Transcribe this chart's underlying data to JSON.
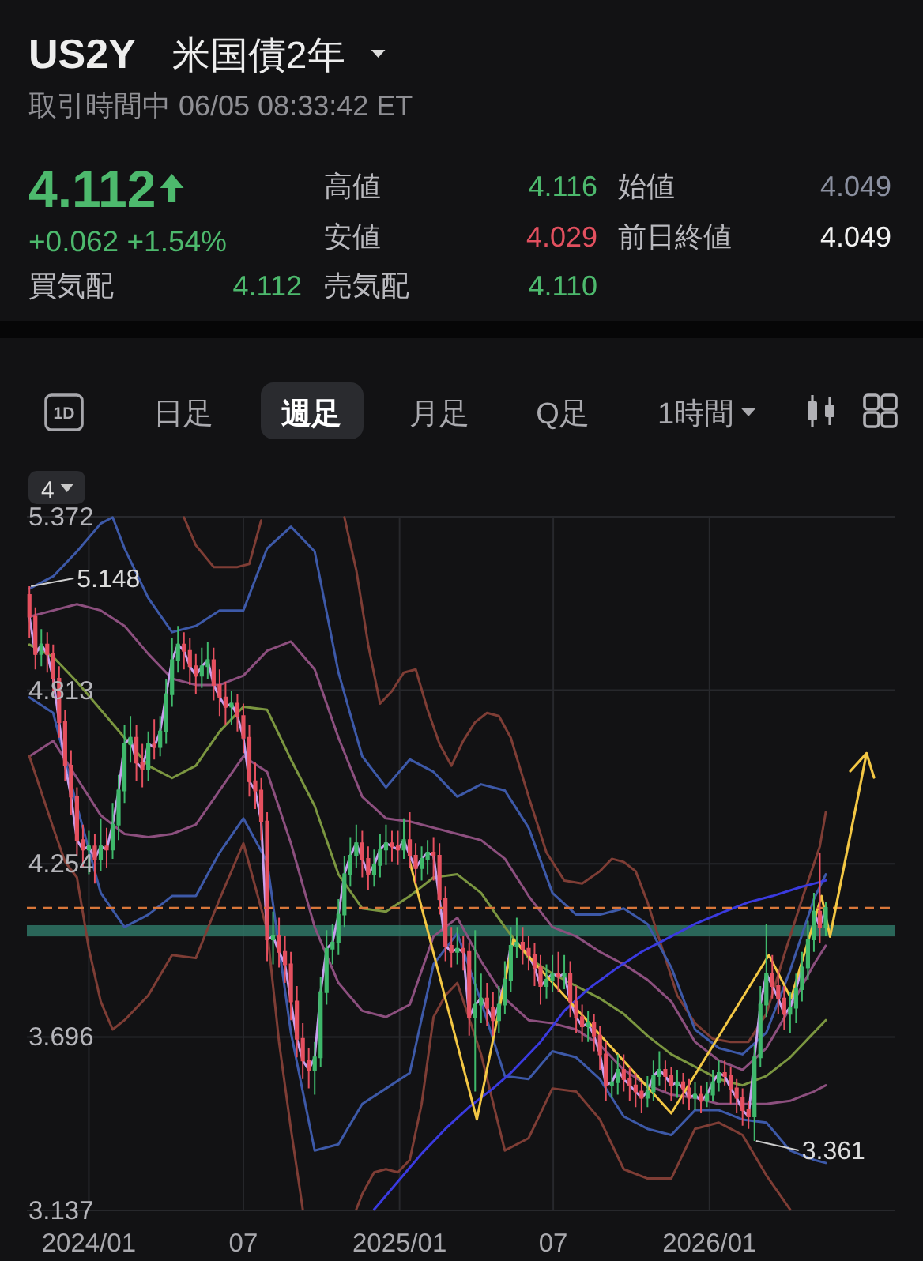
{
  "chart_data": {
    "type": "candlestick",
    "title": "US2Y",
    "subtitle": "米国債2年",
    "annotations": [
      "取引時間中 06/05 08:33:42 ET",
      "4.112",
      "+0.062 +1.54%",
      "高値",
      "4.116",
      "安値",
      "4.029",
      "始値",
      "4.049",
      "前日終値",
      "4.049",
      "買気配",
      "4.112",
      "売気配",
      "4.110",
      "1D",
      "日足",
      "週足",
      "月足",
      "Q足",
      "1時間",
      "4",
      {
        "text": "5.148",
        "x": "2023-10-23",
        "y": 5.148
      },
      {
        "text": "3.361",
        "x": "2026-02-23",
        "y": 3.361
      }
    ],
    "x": [
      "2023-10-23",
      "2023-10-30",
      "2023-11-06",
      "2023-11-13",
      "2023-11-20",
      "2023-11-27",
      "2023-12-04",
      "2023-12-11",
      "2023-12-18",
      "2023-12-25",
      "2024-01-01",
      "2024-01-08",
      "2024-01-15",
      "2024-01-22",
      "2024-01-29",
      "2024-02-05",
      "2024-02-12",
      "2024-02-19",
      "2024-02-26",
      "2024-03-04",
      "2024-03-11",
      "2024-03-18",
      "2024-03-25",
      "2024-04-01",
      "2024-04-08",
      "2024-04-15",
      "2024-04-22",
      "2024-04-29",
      "2024-05-06",
      "2024-05-13",
      "2024-05-20",
      "2024-05-27",
      "2024-06-03",
      "2024-06-10",
      "2024-06-17",
      "2024-06-24",
      "2024-07-01",
      "2024-07-08",
      "2024-07-15",
      "2024-07-22",
      "2024-07-29",
      "2024-08-05",
      "2024-08-12",
      "2024-08-19",
      "2024-08-26",
      "2024-09-02",
      "2024-09-09",
      "2024-09-16",
      "2024-09-23",
      "2024-09-30",
      "2024-10-07",
      "2024-10-14",
      "2024-10-21",
      "2024-10-28",
      "2024-11-04",
      "2024-11-11",
      "2024-11-18",
      "2024-11-25",
      "2024-12-02",
      "2024-12-09",
      "2024-12-16",
      "2024-12-23",
      "2024-12-30",
      "2025-01-06",
      "2025-01-13",
      "2025-01-20",
      "2025-01-27",
      "2025-02-03",
      "2025-02-10",
      "2025-02-17",
      "2025-02-24",
      "2025-03-03",
      "2025-03-10",
      "2025-03-17",
      "2025-03-24",
      "2025-03-31",
      "2025-04-07",
      "2025-04-14",
      "2025-04-21",
      "2025-04-28",
      "2025-05-05",
      "2025-05-12",
      "2025-05-19",
      "2025-05-26",
      "2025-06-02",
      "2025-06-09",
      "2025-06-16",
      "2025-06-23",
      "2025-06-30",
      "2025-07-07",
      "2025-07-14",
      "2025-07-21",
      "2025-07-28",
      "2025-08-04",
      "2025-08-11",
      "2025-08-18",
      "2025-08-25",
      "2025-09-01",
      "2025-09-08",
      "2025-09-15",
      "2025-09-22",
      "2025-09-29",
      "2025-10-06",
      "2025-10-13",
      "2025-10-20",
      "2025-10-27",
      "2025-11-03",
      "2025-11-10",
      "2025-11-17",
      "2025-11-24",
      "2025-12-01",
      "2025-12-08",
      "2025-12-15",
      "2025-12-22",
      "2025-12-29",
      "2026-01-05",
      "2026-01-12",
      "2026-01-19",
      "2026-01-26",
      "2026-02-02",
      "2026-02-09",
      "2026-02-16",
      "2026-02-23",
      "2026-03-02",
      "2026-03-09",
      "2026-03-16",
      "2026-03-23",
      "2026-03-30",
      "2026-04-06",
      "2026-04-13",
      "2026-04-20",
      "2026-04-27",
      "2026-05-04",
      "2026-05-11",
      "2026-05-18"
    ],
    "ohlc": [
      [
        5.12,
        5.148,
        4.98,
        5.05
      ],
      [
        5.05,
        5.08,
        4.88,
        4.93
      ],
      [
        4.93,
        5.01,
        4.89,
        4.96
      ],
      [
        4.96,
        5.0,
        4.87,
        4.93
      ],
      [
        4.93,
        4.96,
        4.8,
        4.85
      ],
      [
        4.85,
        4.89,
        4.66,
        4.71
      ],
      [
        4.71,
        4.75,
        4.52,
        4.57
      ],
      [
        4.57,
        4.62,
        4.41,
        4.47
      ],
      [
        4.47,
        4.5,
        4.28,
        4.33
      ],
      [
        4.33,
        4.38,
        4.24,
        4.3
      ],
      [
        4.3,
        4.36,
        4.22,
        4.31
      ],
      [
        4.31,
        4.35,
        4.19,
        4.27
      ],
      [
        4.27,
        4.4,
        4.23,
        4.31
      ],
      [
        4.31,
        4.37,
        4.24,
        4.3
      ],
      [
        4.3,
        4.45,
        4.27,
        4.38
      ],
      [
        4.38,
        4.54,
        4.33,
        4.49
      ],
      [
        4.49,
        4.7,
        4.45,
        4.64
      ],
      [
        4.64,
        4.73,
        4.58,
        4.66
      ],
      [
        4.66,
        4.7,
        4.52,
        4.58
      ],
      [
        4.58,
        4.64,
        4.5,
        4.56
      ],
      [
        4.56,
        4.68,
        4.52,
        4.64
      ],
      [
        4.64,
        4.72,
        4.59,
        4.63
      ],
      [
        4.63,
        4.73,
        4.6,
        4.68
      ],
      [
        4.68,
        4.85,
        4.64,
        4.8
      ],
      [
        4.8,
        4.98,
        4.76,
        4.91
      ],
      [
        4.91,
        5.02,
        4.87,
        4.96
      ],
      [
        4.96,
        5.0,
        4.88,
        4.94
      ],
      [
        4.94,
        4.98,
        4.83,
        4.89
      ],
      [
        4.89,
        4.93,
        4.8,
        4.86
      ],
      [
        4.86,
        4.95,
        4.82,
        4.89
      ],
      [
        4.89,
        4.97,
        4.85,
        4.91
      ],
      [
        4.91,
        4.95,
        4.78,
        4.83
      ],
      [
        4.83,
        4.88,
        4.73,
        4.79
      ],
      [
        4.79,
        4.84,
        4.7,
        4.76
      ],
      [
        4.76,
        4.81,
        4.7,
        4.77
      ],
      [
        4.77,
        4.8,
        4.68,
        4.73
      ],
      [
        4.73,
        4.77,
        4.61,
        4.66
      ],
      [
        4.66,
        4.7,
        4.47,
        4.52
      ],
      [
        4.52,
        4.58,
        4.43,
        4.49
      ],
      [
        4.49,
        4.53,
        4.33,
        4.39
      ],
      [
        4.39,
        4.42,
        3.94,
        4.01
      ],
      [
        4.01,
        4.1,
        3.93,
        4.02
      ],
      [
        4.02,
        4.08,
        3.92,
        3.97
      ],
      [
        3.97,
        4.02,
        3.87,
        3.93
      ],
      [
        3.93,
        3.97,
        3.75,
        3.81
      ],
      [
        3.81,
        3.86,
        3.63,
        3.69
      ],
      [
        3.69,
        3.74,
        3.56,
        3.62
      ],
      [
        3.62,
        3.66,
        3.53,
        3.59
      ],
      [
        3.59,
        3.68,
        3.51,
        3.63
      ],
      [
        3.63,
        3.89,
        3.6,
        3.84
      ],
      [
        3.84,
        4.04,
        3.8,
        3.98
      ],
      [
        3.98,
        4.06,
        3.93,
        4.0
      ],
      [
        4.0,
        4.14,
        3.96,
        4.09
      ],
      [
        4.09,
        4.28,
        4.05,
        4.22
      ],
      [
        4.22,
        4.34,
        4.18,
        4.28
      ],
      [
        4.28,
        4.38,
        4.24,
        4.32
      ],
      [
        4.32,
        4.36,
        4.21,
        4.27
      ],
      [
        4.27,
        4.31,
        4.17,
        4.22
      ],
      [
        4.22,
        4.3,
        4.18,
        4.25
      ],
      [
        4.25,
        4.35,
        4.21,
        4.3
      ],
      [
        4.3,
        4.38,
        4.25,
        4.32
      ],
      [
        4.32,
        4.36,
        4.26,
        4.31
      ],
      [
        4.31,
        4.36,
        4.25,
        4.3
      ],
      [
        4.3,
        4.4,
        4.27,
        4.33
      ],
      [
        4.33,
        4.42,
        4.24,
        4.28
      ],
      [
        4.28,
        4.32,
        4.19,
        4.24
      ],
      [
        4.24,
        4.31,
        4.2,
        4.27
      ],
      [
        4.27,
        4.33,
        4.22,
        4.29
      ],
      [
        4.29,
        4.34,
        4.2,
        4.28
      ],
      [
        4.28,
        4.32,
        4.09,
        4.14
      ],
      [
        4.14,
        4.18,
        3.94,
        3.99
      ],
      [
        3.99,
        4.05,
        3.92,
        3.97
      ],
      [
        3.97,
        4.05,
        3.93,
        3.98
      ],
      [
        3.98,
        4.02,
        3.91,
        3.97
      ],
      [
        3.97,
        4.0,
        3.7,
        3.76
      ],
      [
        3.76,
        4.04,
        3.52,
        3.8
      ],
      [
        3.8,
        3.9,
        3.74,
        3.82
      ],
      [
        3.82,
        3.87,
        3.73,
        3.79
      ],
      [
        3.79,
        3.84,
        3.7,
        3.75
      ],
      [
        3.75,
        3.86,
        3.71,
        3.8
      ],
      [
        3.8,
        3.94,
        3.77,
        3.88
      ],
      [
        3.88,
        4.05,
        3.84,
        3.99
      ],
      [
        3.99,
        4.08,
        3.95,
        4.0
      ],
      [
        4.0,
        4.05,
        3.93,
        3.98
      ],
      [
        3.98,
        4.02,
        3.91,
        3.96
      ],
      [
        3.96,
        4.0,
        3.86,
        3.92
      ],
      [
        3.92,
        3.96,
        3.8,
        3.86
      ],
      [
        3.86,
        3.93,
        3.82,
        3.88
      ],
      [
        3.88,
        3.96,
        3.84,
        3.9
      ],
      [
        3.9,
        3.97,
        3.84,
        3.89
      ],
      [
        3.89,
        3.96,
        3.85,
        3.9
      ],
      [
        3.9,
        3.94,
        3.76,
        3.81
      ],
      [
        3.81,
        3.86,
        3.71,
        3.76
      ],
      [
        3.76,
        3.8,
        3.68,
        3.73
      ],
      [
        3.73,
        3.78,
        3.68,
        3.74
      ],
      [
        3.74,
        3.77,
        3.65,
        3.7
      ],
      [
        3.7,
        3.73,
        3.59,
        3.64
      ],
      [
        3.64,
        3.68,
        3.49,
        3.54
      ],
      [
        3.54,
        3.62,
        3.5,
        3.55
      ],
      [
        3.55,
        3.64,
        3.51,
        3.59
      ],
      [
        3.59,
        3.64,
        3.52,
        3.56
      ],
      [
        3.56,
        3.6,
        3.49,
        3.54
      ],
      [
        3.54,
        3.58,
        3.47,
        3.52
      ],
      [
        3.52,
        3.55,
        3.45,
        3.5
      ],
      [
        3.5,
        3.57,
        3.47,
        3.52
      ],
      [
        3.52,
        3.62,
        3.49,
        3.57
      ],
      [
        3.57,
        3.65,
        3.54,
        3.59
      ],
      [
        3.59,
        3.62,
        3.52,
        3.57
      ],
      [
        3.57,
        3.6,
        3.49,
        3.54
      ],
      [
        3.54,
        3.59,
        3.5,
        3.55
      ],
      [
        3.55,
        3.58,
        3.48,
        3.53
      ],
      [
        3.53,
        3.56,
        3.46,
        3.5
      ],
      [
        3.5,
        3.55,
        3.46,
        3.51
      ],
      [
        3.51,
        3.54,
        3.45,
        3.49
      ],
      [
        3.49,
        3.55,
        3.47,
        3.51
      ],
      [
        3.51,
        3.59,
        3.49,
        3.55
      ],
      [
        3.55,
        3.62,
        3.52,
        3.58
      ],
      [
        3.58,
        3.62,
        3.54,
        3.57
      ],
      [
        3.57,
        3.6,
        3.48,
        3.53
      ],
      [
        3.53,
        3.56,
        3.45,
        3.5
      ],
      [
        3.5,
        3.53,
        3.41,
        3.46
      ],
      [
        3.46,
        3.49,
        3.4,
        3.44
      ],
      [
        3.44,
        3.67,
        3.361,
        3.63
      ],
      [
        3.63,
        3.86,
        3.6,
        3.8
      ],
      [
        3.8,
        4.06,
        3.76,
        3.9
      ],
      [
        3.9,
        3.96,
        3.82,
        3.86
      ],
      [
        3.86,
        3.91,
        3.77,
        3.82
      ],
      [
        3.82,
        3.86,
        3.72,
        3.77
      ],
      [
        3.77,
        3.84,
        3.71,
        3.79
      ],
      [
        3.79,
        3.9,
        3.74,
        3.85
      ],
      [
        3.85,
        3.97,
        3.81,
        3.92
      ],
      [
        3.92,
        4.07,
        3.88,
        4.01
      ],
      [
        4.01,
        4.16,
        3.97,
        4.1
      ],
      [
        4.1,
        4.29,
        4.0,
        4.05
      ],
      [
        4.05,
        4.13,
        4.02,
        4.112
      ]
    ],
    "colors": [
      "#e5505f",
      "#e5505f",
      "#3fb86b",
      "#e5505f",
      "#e5505f",
      "#e5505f",
      "#e5505f",
      "#e5505f",
      "#e5505f",
      "#e5505f",
      "#3fb86b",
      "#e5505f",
      "#3fb86b",
      "#e5505f",
      "#3fb86b",
      "#3fb86b",
      "#3fb86b",
      "#3fb86b",
      "#e5505f",
      "#e5505f",
      "#3fb86b",
      "#e5505f",
      "#3fb86b",
      "#3fb86b",
      "#3fb86b",
      "#3fb86b",
      "#e5505f",
      "#e5505f",
      "#e5505f",
      "#3fb86b",
      "#3fb86b",
      "#e5505f",
      "#e5505f",
      "#e5505f",
      "#3fb86b",
      "#e5505f",
      "#e5505f",
      "#e5505f",
      "#e5505f",
      "#e5505f",
      "#e5505f",
      "#3fb86b",
      "#e5505f",
      "#e5505f",
      "#e5505f",
      "#e5505f",
      "#e5505f",
      "#e5505f",
      "#3fb86b",
      "#3fb86b",
      "#3fb86b",
      "#3fb86b",
      "#3fb86b",
      "#3fb86b",
      "#3fb86b",
      "#3fb86b",
      "#e5505f",
      "#e5505f",
      "#3fb86b",
      "#3fb86b",
      "#3fb86b",
      "#e5505f",
      "#e5505f",
      "#3fb86b",
      "#e5505f",
      "#e5505f",
      "#3fb86b",
      "#3fb86b",
      "#e5505f",
      "#e5505f",
      "#e5505f",
      "#e5505f",
      "#3fb86b",
      "#e5505f",
      "#e5505f",
      "#3fb86b",
      "#3fb86b",
      "#e5505f",
      "#e5505f",
      "#3fb86b",
      "#3fb86b",
      "#3fb86b",
      "#3fb86b",
      "#e5505f",
      "#e5505f",
      "#e5505f",
      "#e5505f",
      "#3fb86b",
      "#3fb86b",
      "#e5505f",
      "#3fb86b",
      "#e5505f",
      "#e5505f",
      "#e5505f",
      "#3fb86b",
      "#e5505f",
      "#e5505f",
      "#e5505f",
      "#3fb86b",
      "#3fb86b",
      "#e5505f",
      "#e5505f",
      "#e5505f",
      "#e5505f",
      "#3fb86b",
      "#3fb86b",
      "#3fb86b",
      "#e5505f",
      "#e5505f",
      "#3fb86b",
      "#e5505f",
      "#e5505f",
      "#3fb86b",
      "#e5505f",
      "#3fb86b",
      "#3fb86b",
      "#3fb86b",
      "#e5505f",
      "#e5505f",
      "#e5505f",
      "#e5505f",
      "#e5505f",
      "#3fb86b",
      "#3fb86b",
      "#3fb86b",
      "#e5505f",
      "#e5505f",
      "#e5505f",
      "#3fb86b",
      "#3fb86b",
      "#3fb86b",
      "#3fb86b",
      "#3fb86b",
      "#e5505f",
      "#3fb86b"
    ],
    "xlim": [
      "2023-10-20",
      "2026-08-07"
    ],
    "xticks": [
      {
        "value": "2024-01-01",
        "label": "2024/01"
      },
      {
        "value": "2024-07-01",
        "label": "07"
      },
      {
        "value": "2025-01-01",
        "label": "2025/01"
      },
      {
        "value": "2025-07-01",
        "label": "07"
      },
      {
        "value": "2026-01-01",
        "label": "2026/01"
      }
    ],
    "ylim": [
      3.137,
      5.372
    ],
    "yticks": [
      3.137,
      3.696,
      4.254,
      4.813,
      5.372
    ],
    "grid": true,
    "ref_lines": [
      {
        "axis": "y",
        "value": 4.112,
        "color": "#d9773a",
        "line_style": "dashed"
      }
    ],
    "bands": [
      {
        "axis": "y",
        "from": 4.02,
        "to": 4.056,
        "color": "#2f7565"
      }
    ],
    "series": [
      {
        "type": "line",
        "color": "#7e3d35",
        "x": [
          "2024-04-22",
          "2024-05-06",
          "2024-05-27",
          "2024-06-24",
          "2024-07-08",
          "2024-07-22",
          "2024-07-29",
          "2024-10-28",
          "2024-11-11",
          "2024-11-25",
          "2024-12-09",
          "2024-12-23",
          "2025-01-06",
          "2025-01-20",
          "2025-02-03",
          "2025-02-17",
          "2025-03-03",
          "2025-03-17",
          "2025-03-31",
          "2025-04-14",
          "2025-04-28",
          "2025-05-12",
          "2025-06-02",
          "2025-06-23",
          "2025-07-14",
          "2025-08-04",
          "2025-08-25",
          "2025-09-08",
          "2025-09-22",
          "2025-10-06",
          "2025-10-20",
          "2025-11-10",
          "2025-11-24",
          "2025-12-15",
          "2026-01-05",
          "2026-01-26",
          "2026-02-16",
          "2026-03-09",
          "2026-03-30",
          "2026-04-20",
          "2026-05-11",
          "2026-05-18"
        ],
        "values": [
          5.37,
          5.28,
          5.21,
          5.21,
          5.22,
          5.36,
          null,
          5.37,
          5.2,
          4.96,
          4.77,
          4.81,
          4.87,
          4.88,
          4.75,
          4.64,
          4.57,
          4.65,
          4.71,
          4.74,
          4.73,
          4.66,
          4.47,
          4.29,
          4.2,
          4.19,
          4.23,
          4.27,
          4.26,
          4.23,
          4.13,
          3.95,
          3.83,
          3.74,
          3.69,
          3.68,
          3.68,
          3.77,
          3.96,
          4.14,
          4.31,
          4.42
        ]
      },
      {
        "type": "line",
        "color": "#3d59a8",
        "x": [
          "2023-10-23",
          "2023-11-20",
          "2023-12-18",
          "2024-01-15",
          "2024-01-29",
          "2024-02-12",
          "2024-03-11",
          "2024-04-08",
          "2024-05-06",
          "2024-06-03",
          "2024-07-01",
          "2024-07-29",
          "2024-08-26",
          "2024-09-23",
          "2024-10-21",
          "2024-11-18",
          "2024-12-16",
          "2025-01-13",
          "2025-02-10",
          "2025-03-10",
          "2025-04-07",
          "2025-05-05",
          "2025-06-02",
          "2025-06-30",
          "2025-07-28",
          "2025-08-25",
          "2025-09-22",
          "2025-10-20",
          "2025-11-17",
          "2025-12-15",
          "2026-01-12",
          "2026-02-09",
          "2026-03-09",
          "2026-04-06",
          "2026-05-04",
          "2026-05-18"
        ],
        "values": [
          5.14,
          5.18,
          5.26,
          5.35,
          5.37,
          5.27,
          5.11,
          5.0,
          5.02,
          5.07,
          5.07,
          5.27,
          5.34,
          5.26,
          4.87,
          4.6,
          4.5,
          4.59,
          4.55,
          4.47,
          4.51,
          4.49,
          4.37,
          4.16,
          4.09,
          4.09,
          4.11,
          4.06,
          3.92,
          3.72,
          3.66,
          3.64,
          3.71,
          3.91,
          4.14,
          4.22
        ]
      },
      {
        "type": "line",
        "color": "#8c4f7e",
        "x": [
          "2023-10-23",
          "2023-11-20",
          "2023-12-18",
          "2024-01-15",
          "2024-02-12",
          "2024-03-11",
          "2024-04-08",
          "2024-05-06",
          "2024-06-03",
          "2024-07-01",
          "2024-07-29",
          "2024-08-26",
          "2024-09-23",
          "2024-10-21",
          "2024-11-18",
          "2024-12-16",
          "2025-01-13",
          "2025-02-10",
          "2025-03-10",
          "2025-04-07",
          "2025-05-05",
          "2025-06-02",
          "2025-06-30",
          "2025-07-28",
          "2025-08-25",
          "2025-09-22",
          "2025-10-20",
          "2025-11-17",
          "2025-12-15",
          "2026-01-12",
          "2026-02-09",
          "2026-03-09",
          "2026-04-06",
          "2026-05-04",
          "2026-05-18"
        ],
        "values": [
          5.05,
          5.07,
          5.09,
          5.07,
          5.02,
          4.93,
          4.85,
          4.83,
          4.83,
          4.86,
          4.94,
          4.97,
          4.88,
          4.66,
          4.47,
          4.4,
          4.39,
          4.37,
          4.35,
          4.33,
          4.27,
          4.15,
          4.05,
          4.02,
          3.97,
          3.93,
          3.88,
          3.81,
          3.68,
          3.62,
          3.59,
          3.66,
          3.79,
          3.93,
          3.99
        ]
      },
      {
        "type": "line",
        "color": "#7b9640",
        "x": [
          "2023-10-23",
          "2023-11-20",
          "2023-12-18",
          "2024-01-15",
          "2024-02-12",
          "2024-03-11",
          "2024-04-08",
          "2024-05-06",
          "2024-06-03",
          "2024-07-01",
          "2024-07-29",
          "2024-08-26",
          "2024-09-23",
          "2024-10-21",
          "2024-11-18",
          "2024-12-16",
          "2025-01-13",
          "2025-02-10",
          "2025-03-10",
          "2025-04-07",
          "2025-05-05",
          "2025-06-02",
          "2025-06-30",
          "2025-07-28",
          "2025-08-25",
          "2025-09-22",
          "2025-10-20",
          "2025-11-17",
          "2025-12-15",
          "2026-01-12",
          "2026-02-09",
          "2026-03-09",
          "2026-04-06",
          "2026-05-04",
          "2026-05-18"
        ],
        "values": [
          4.96,
          4.92,
          4.84,
          4.75,
          4.66,
          4.57,
          4.53,
          4.57,
          4.68,
          4.76,
          4.75,
          4.59,
          4.44,
          4.22,
          4.11,
          4.1,
          4.15,
          4.21,
          4.22,
          4.16,
          4.05,
          3.95,
          3.9,
          3.86,
          3.82,
          3.77,
          3.7,
          3.64,
          3.6,
          3.56,
          3.54,
          3.57,
          3.63,
          3.71,
          3.75
        ]
      },
      {
        "type": "line",
        "color": "#8c4f7e",
        "x": [
          "2023-10-23",
          "2023-11-20",
          "2023-12-18",
          "2024-01-15",
          "2024-02-12",
          "2024-03-11",
          "2024-04-08",
          "2024-05-06",
          "2024-06-03",
          "2024-07-01",
          "2024-07-29",
          "2024-08-26",
          "2024-09-23",
          "2024-10-21",
          "2024-11-18",
          "2024-12-16",
          "2025-01-13",
          "2025-02-10",
          "2025-03-10",
          "2025-04-07",
          "2025-05-05",
          "2025-06-02",
          "2025-06-30",
          "2025-07-28",
          "2025-08-25",
          "2025-09-22",
          "2025-10-20",
          "2025-11-17",
          "2025-12-15",
          "2026-01-12",
          "2026-02-09",
          "2026-03-09",
          "2026-04-06",
          "2026-05-04",
          "2026-05-18"
        ],
        "values": [
          4.6,
          4.65,
          4.53,
          4.41,
          4.35,
          4.34,
          4.35,
          4.38,
          4.49,
          4.6,
          4.55,
          4.32,
          4.05,
          3.87,
          3.78,
          3.76,
          3.8,
          4.02,
          4.08,
          3.94,
          3.82,
          3.75,
          3.74,
          3.72,
          3.67,
          3.59,
          3.54,
          3.51,
          3.5,
          3.48,
          3.48,
          3.48,
          3.49,
          3.52,
          3.54
        ]
      },
      {
        "type": "line",
        "color": "#3d59a8",
        "x": [
          "2023-10-23",
          "2023-11-20",
          "2023-12-18",
          "2024-01-15",
          "2024-02-12",
          "2024-03-11",
          "2024-04-08",
          "2024-05-06",
          "2024-06-03",
          "2024-07-01",
          "2024-07-29",
          "2024-08-26",
          "2024-09-23",
          "2024-10-21",
          "2024-11-18",
          "2024-12-16",
          "2025-01-13",
          "2025-02-10",
          "2025-03-10",
          "2025-04-07",
          "2025-05-05",
          "2025-06-02",
          "2025-06-30",
          "2025-07-28",
          "2025-08-25",
          "2025-09-22",
          "2025-10-20",
          "2025-11-17",
          "2025-12-15",
          "2026-01-12",
          "2026-02-09",
          "2026-03-09",
          "2026-04-06",
          "2026-05-04",
          "2026-05-18"
        ],
        "values": [
          4.79,
          4.74,
          4.44,
          4.16,
          4.05,
          4.09,
          4.15,
          4.15,
          4.29,
          4.4,
          4.26,
          3.71,
          3.33,
          3.35,
          3.48,
          3.53,
          3.58,
          3.93,
          4.03,
          3.81,
          3.57,
          3.56,
          3.65,
          3.63,
          3.56,
          3.44,
          3.4,
          3.38,
          3.46,
          3.46,
          3.43,
          3.42,
          3.33,
          3.3,
          3.29
        ]
      },
      {
        "type": "line",
        "color": "#7e3d35",
        "x": [
          "2023-10-23",
          "2023-11-20",
          "2023-12-04",
          "2023-12-18",
          "2024-01-01",
          "2024-01-15",
          "2024-01-29",
          "2024-02-12",
          "2024-03-11",
          "2024-04-08",
          "2024-05-06",
          "2024-06-03",
          "2024-07-01",
          "2024-07-29",
          "2024-08-12",
          "2024-08-26",
          "2024-09-02",
          "2024-09-09",
          "2024-09-16",
          "2024-11-11",
          "2024-11-18",
          "2024-12-02",
          "2024-12-16",
          "2024-12-30",
          "2025-01-13",
          "2025-01-27",
          "2025-02-10",
          "2025-02-24",
          "2025-03-10",
          "2025-04-07",
          "2025-05-05",
          "2025-06-02",
          "2025-06-30",
          "2025-07-28",
          "2025-08-25",
          "2025-09-22",
          "2025-10-20",
          "2025-11-17",
          "2025-12-15",
          "2026-01-12",
          "2026-02-09",
          "2026-03-09",
          "2026-04-06"
        ],
        "values": [
          4.6,
          4.37,
          4.26,
          4.21,
          3.98,
          3.81,
          3.72,
          3.75,
          3.83,
          3.96,
          3.95,
          4.14,
          4.32,
          4.04,
          3.68,
          3.4,
          3.27,
          3.14,
          null,
          3.14,
          3.19,
          3.26,
          3.27,
          3.26,
          3.3,
          3.48,
          3.76,
          3.83,
          3.87,
          3.64,
          3.33,
          3.37,
          3.53,
          3.52,
          3.43,
          3.27,
          3.24,
          3.24,
          3.4,
          3.42,
          3.38,
          3.25,
          3.14
        ]
      },
      {
        "type": "line",
        "color": "#3a3ae0",
        "x": [
          "2024-12-02",
          "2024-12-30",
          "2025-01-27",
          "2025-02-24",
          "2025-03-24",
          "2025-04-21",
          "2025-05-12",
          "2025-06-16",
          "2025-07-14",
          "2025-08-11",
          "2025-09-15",
          "2025-10-13",
          "2025-11-17",
          "2025-12-15",
          "2026-01-19",
          "2026-02-16",
          "2026-03-16",
          "2026-04-20",
          "2026-05-18"
        ],
        "values": [
          3.14,
          3.23,
          3.32,
          3.4,
          3.47,
          3.53,
          3.58,
          3.68,
          3.78,
          3.85,
          3.92,
          3.97,
          4.02,
          4.06,
          4.1,
          4.13,
          4.15,
          4.18,
          4.2
        ]
      },
      {
        "type": "line",
        "color": "#c9a0ee",
        "values": [
          5.05,
          4.93,
          4.96,
          4.93,
          4.85,
          4.71,
          4.57,
          4.47,
          4.33,
          4.3,
          4.31,
          4.27,
          4.31,
          4.3,
          4.38,
          4.49,
          4.64,
          4.66,
          4.58,
          4.56,
          4.64,
          4.63,
          4.68,
          4.8,
          4.91,
          4.96,
          4.94,
          4.89,
          4.86,
          4.89,
          4.91,
          4.83,
          4.79,
          4.76,
          4.77,
          4.73,
          4.66,
          4.52,
          4.49,
          4.39,
          4.01,
          4.02,
          3.97,
          3.93,
          3.81,
          3.69,
          3.62,
          3.59,
          3.63,
          3.84,
          3.98,
          4.0,
          4.09,
          4.22,
          4.28,
          4.32,
          4.27,
          4.22,
          4.25,
          4.3,
          4.32,
          4.31,
          4.3,
          4.33,
          4.28,
          4.24,
          4.27,
          4.29,
          4.28,
          4.14,
          3.99,
          3.97,
          3.98,
          3.97,
          3.76,
          3.8,
          3.82,
          3.79,
          3.75,
          3.8,
          3.88,
          3.99,
          4.0,
          3.98,
          3.96,
          3.92,
          3.86,
          3.88,
          3.9,
          3.89,
          3.9,
          3.81,
          3.76,
          3.73,
          3.74,
          3.7,
          3.64,
          3.54,
          3.55,
          3.59,
          3.56,
          3.54,
          3.52,
          3.5,
          3.52,
          3.57,
          3.59,
          3.57,
          3.54,
          3.55,
          3.53,
          3.5,
          3.51,
          3.49,
          3.51,
          3.55,
          3.58,
          3.57,
          3.53,
          3.5,
          3.46,
          3.44,
          3.63,
          3.8,
          3.9,
          3.86,
          3.82,
          3.77,
          3.79,
          3.85,
          3.92,
          null,
          4.1,
          4.05,
          4.112
        ]
      },
      {
        "type": "line",
        "color": "#f3c744",
        "x": [
          "2025-01-13",
          "2025-04-02",
          "2025-05-15",
          "2025-11-17",
          "2026-03-12",
          "2026-04-07",
          "2026-05-13",
          "2026-05-23"
        ],
        "values": [
          4.26,
          3.43,
          4.01,
          3.45,
          3.96,
          3.82,
          4.15,
          4.02
        ]
      }
    ]
  }
}
